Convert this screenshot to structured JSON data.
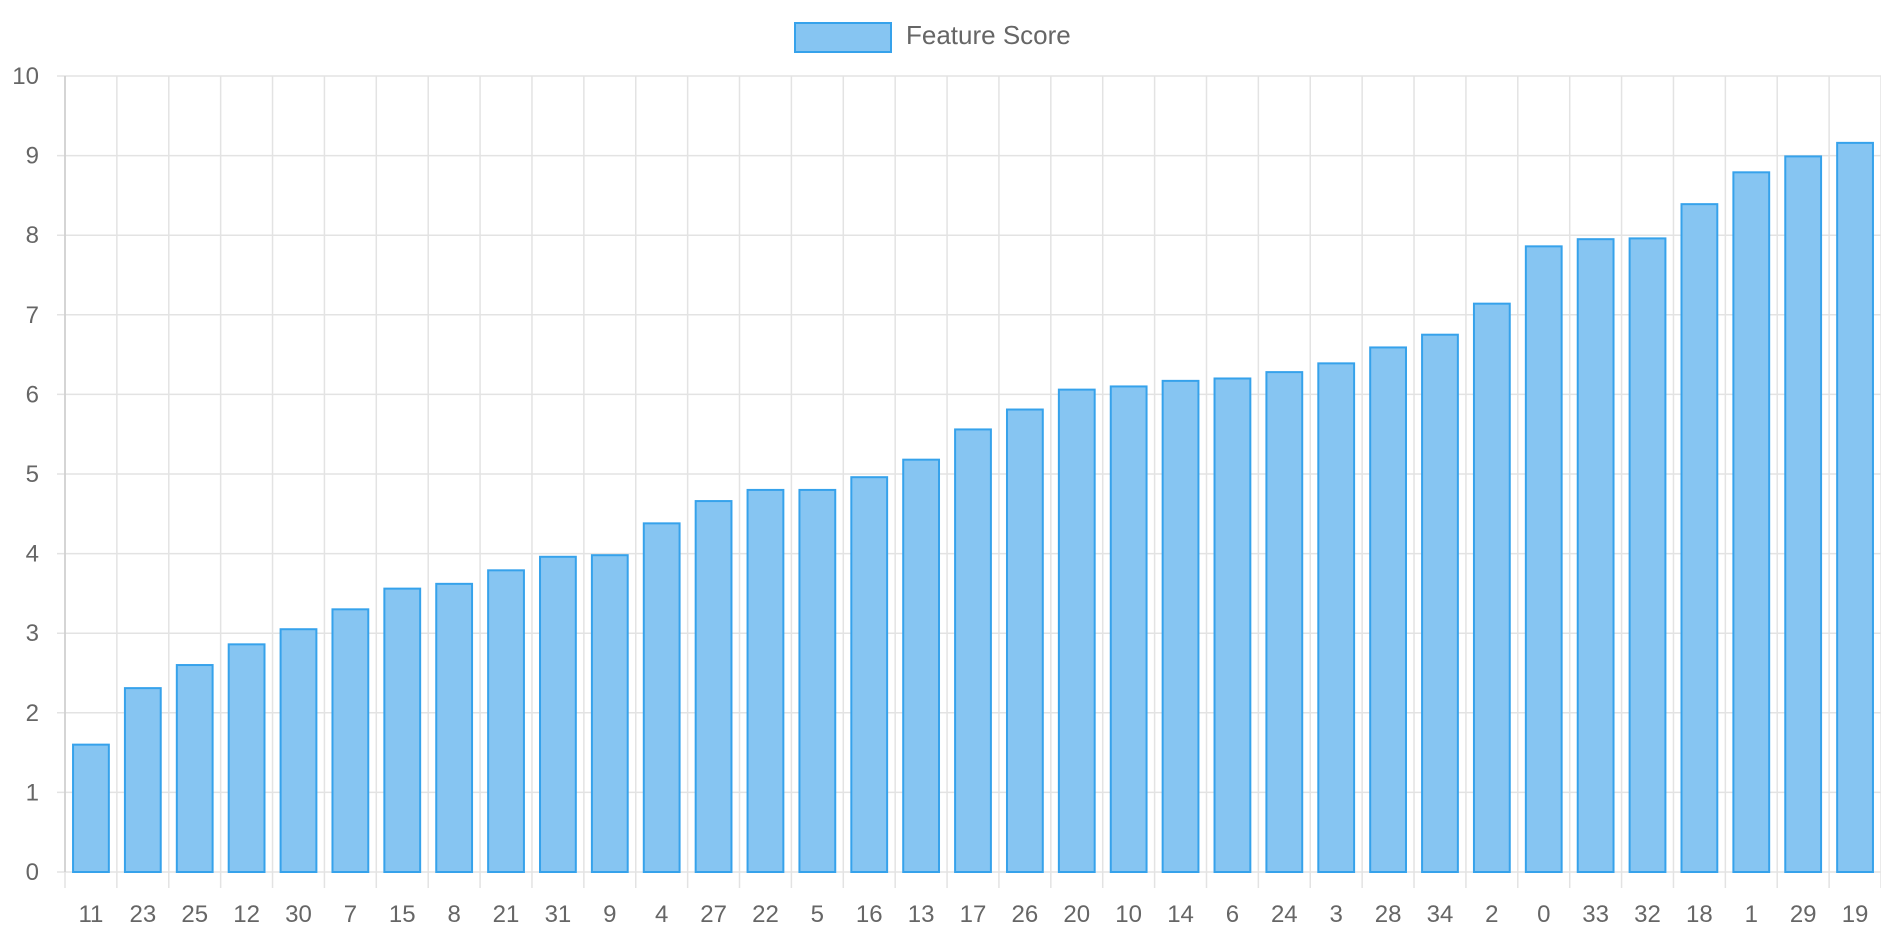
{
  "chart_data": {
    "type": "bar",
    "title": "",
    "xlabel": "",
    "ylabel": "",
    "legend": {
      "position": "top",
      "entries": [
        "Feature Score"
      ]
    },
    "grid": true,
    "ylim": [
      0,
      10
    ],
    "yticks": [
      0,
      1,
      2,
      3,
      4,
      5,
      6,
      7,
      8,
      9,
      10
    ],
    "categories": [
      "11",
      "23",
      "25",
      "12",
      "30",
      "7",
      "15",
      "8",
      "21",
      "31",
      "9",
      "4",
      "27",
      "22",
      "5",
      "16",
      "13",
      "17",
      "26",
      "20",
      "10",
      "14",
      "6",
      "24",
      "3",
      "28",
      "34",
      "2",
      "0",
      "33",
      "32",
      "18",
      "1",
      "29",
      "19"
    ],
    "series": [
      {
        "name": "Feature Score",
        "values": [
          1.6,
          2.31,
          2.6,
          2.86,
          3.05,
          3.3,
          3.56,
          3.62,
          3.79,
          3.96,
          3.98,
          4.38,
          4.66,
          4.8,
          4.8,
          4.96,
          5.18,
          5.56,
          5.81,
          6.06,
          6.1,
          6.17,
          6.2,
          6.28,
          6.39,
          6.59,
          6.75,
          7.14,
          7.86,
          7.95,
          7.96,
          8.39,
          8.79,
          8.99,
          9.16
        ]
      }
    ],
    "colors": {
      "bar_fill": "#86c5f2",
      "bar_border": "#36a2eb",
      "grid": "#e3e3e3",
      "tick_text": "#666666",
      "legend_text": "#666666"
    }
  }
}
